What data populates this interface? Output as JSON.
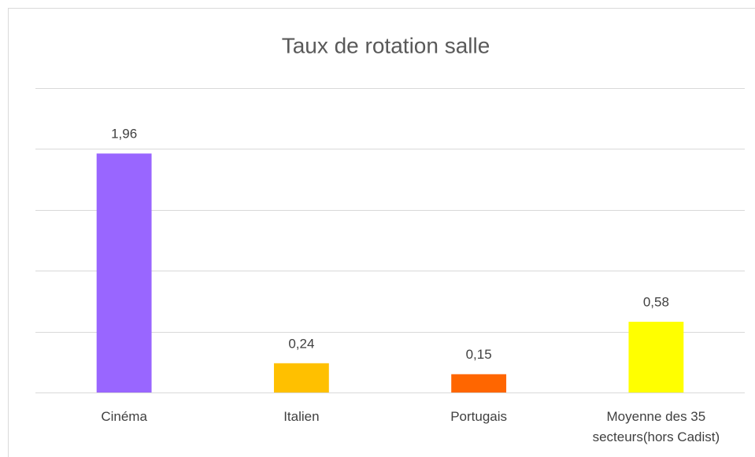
{
  "chart_data": {
    "type": "bar",
    "title": "Taux de rotation salle",
    "categories": [
      "Cinéma",
      "Italien",
      "Portugais",
      "Moyenne des 35 secteurs(hors Cadist)"
    ],
    "values": [
      1.96,
      0.24,
      0.15,
      0.58
    ],
    "value_labels": [
      "1,96",
      "0,24",
      "0,15",
      "0,58"
    ],
    "colors": [
      "#9966ff",
      "#ffc000",
      "#ff6600",
      "#ffff00"
    ],
    "ylim": [
      0,
      2.5
    ],
    "yticks": [
      0,
      0.5,
      1,
      1.5,
      2,
      2.5
    ],
    "grid": true
  }
}
